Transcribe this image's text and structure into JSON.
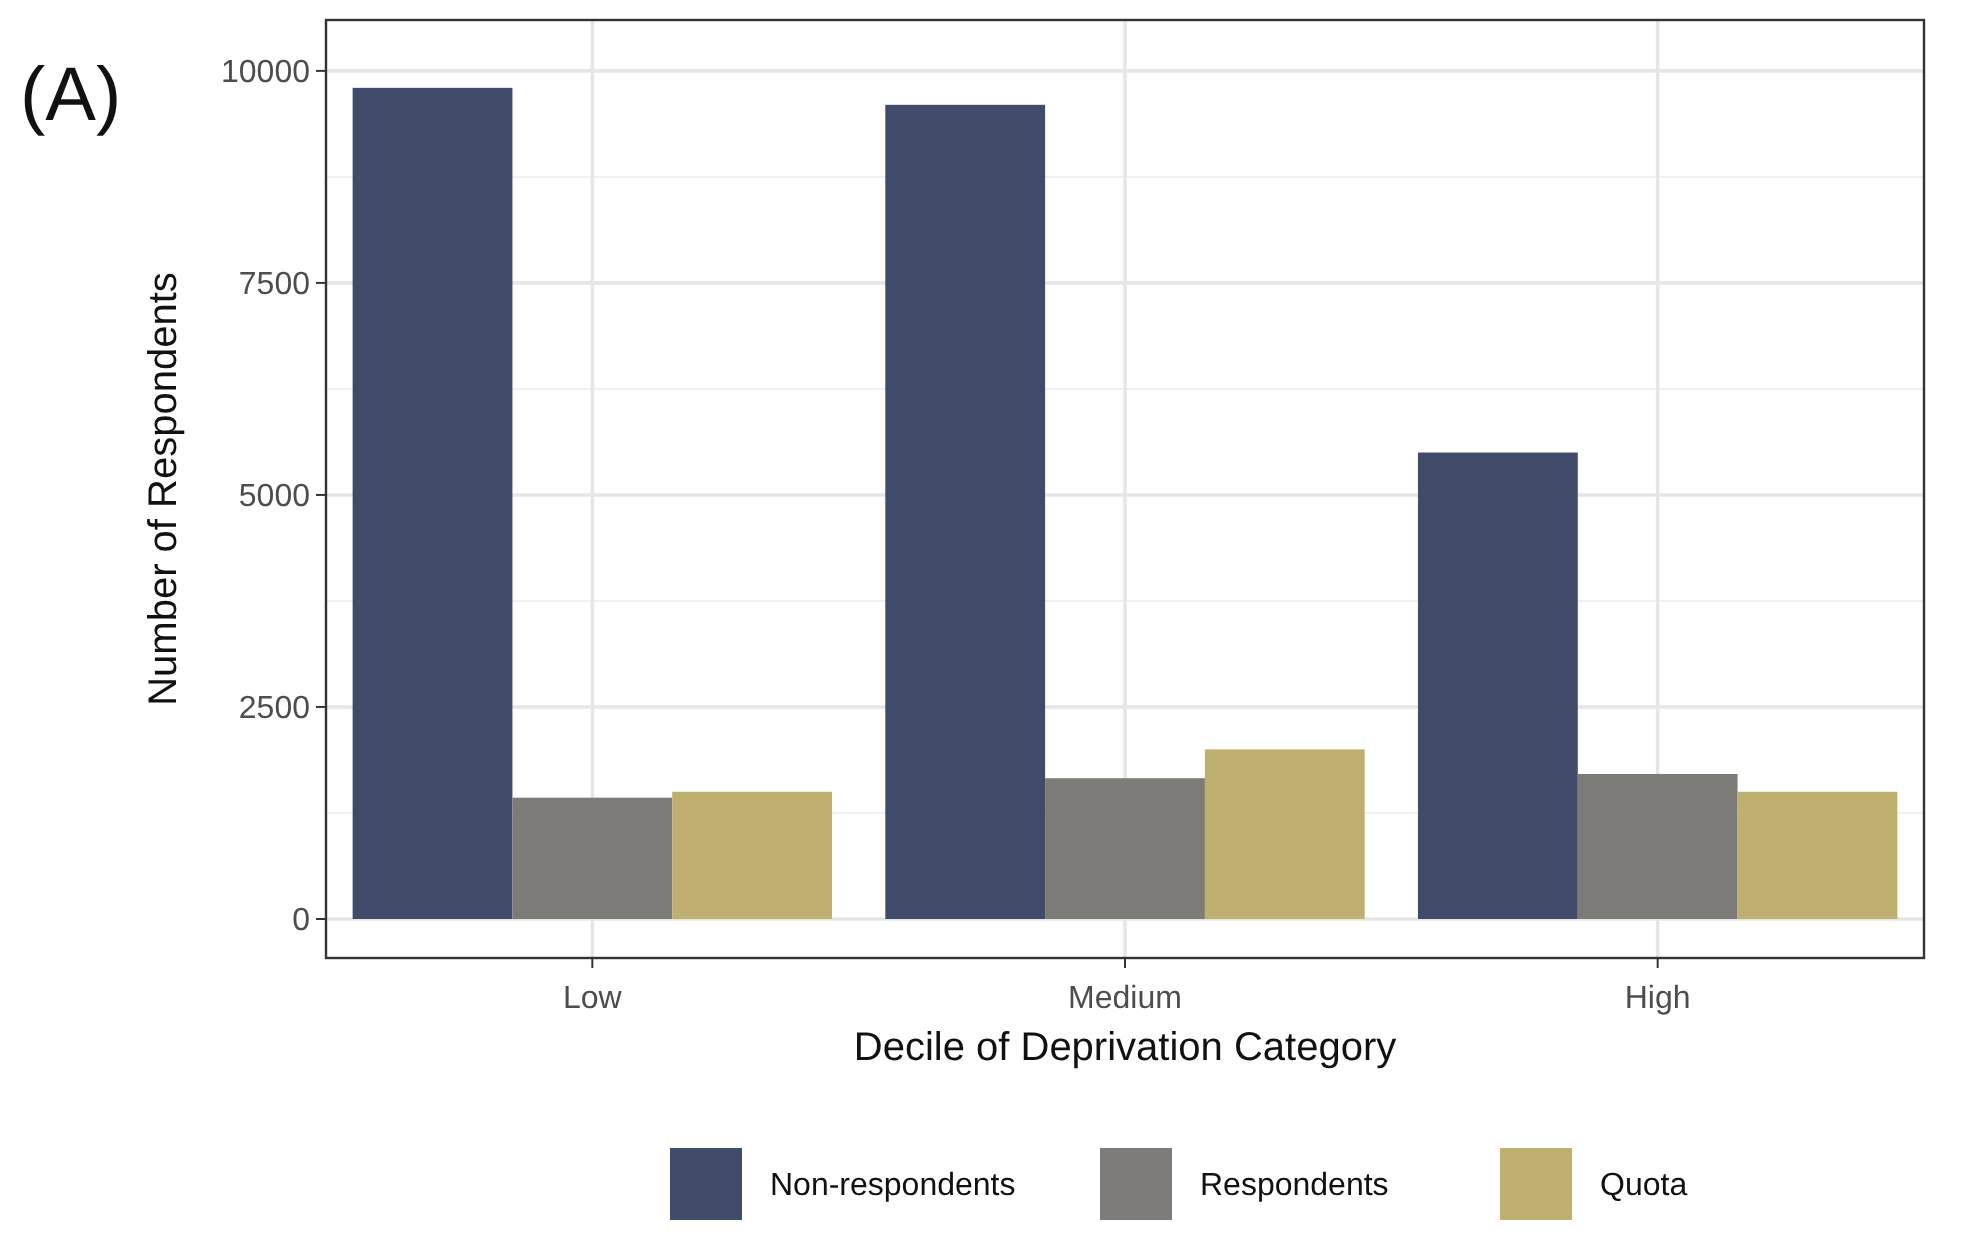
{
  "chart_data": {
    "type": "bar",
    "xlabel": "Decile of Deprivation Category",
    "ylabel": "Number of Respondents",
    "annotations": [
      "(A)"
    ],
    "categories": [
      "Low",
      "Medium",
      "High"
    ],
    "series": [
      {
        "name": "Non-respondents",
        "color": "#404b69",
        "values": [
          9800,
          9600,
          5500
        ]
      },
      {
        "name": "Respondents",
        "color": "#7c7b77",
        "values": [
          1430,
          1660,
          1710
        ]
      },
      {
        "name": "Quota",
        "color": "#bfb070",
        "values": [
          1500,
          2000,
          1500
        ]
      }
    ],
    "ylim": [
      -460,
      10600
    ],
    "yticks": [
      0,
      2500,
      5000,
      7500,
      10000
    ],
    "grid": true,
    "legend": "bottom"
  }
}
